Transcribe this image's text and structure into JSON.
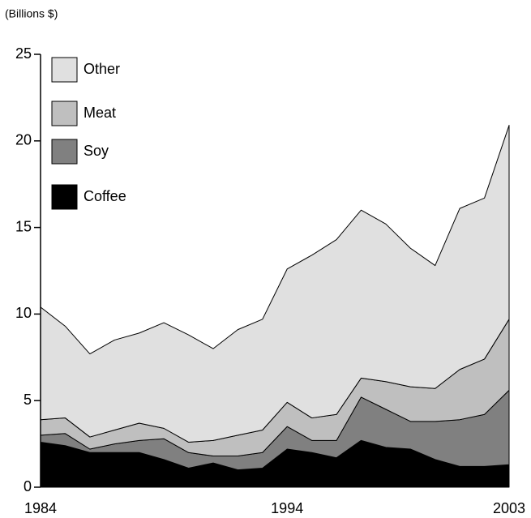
{
  "chart_data": {
    "type": "area",
    "y_label": "(Billions $)",
    "x": [
      1984,
      1985,
      1986,
      1987,
      1988,
      1989,
      1990,
      1991,
      1992,
      1993,
      1994,
      1995,
      1996,
      1997,
      1998,
      1999,
      2000,
      2001,
      2002,
      2003
    ],
    "xlim": [
      1984,
      2003
    ],
    "xticks": [
      1984,
      1994,
      2003
    ],
    "ylim": [
      0,
      25
    ],
    "yticks": [
      0,
      5,
      10,
      15,
      20,
      25
    ],
    "stacked": true,
    "legend": "upper left",
    "series": [
      {
        "name": "Coffee",
        "color": "#000000",
        "values": [
          2.6,
          2.4,
          2.0,
          2.0,
          2.0,
          1.6,
          1.1,
          1.4,
          1.0,
          1.1,
          2.2,
          2.0,
          1.7,
          2.7,
          2.3,
          2.2,
          1.6,
          1.2,
          1.2,
          1.3
        ]
      },
      {
        "name": "Soy",
        "color": "#808080",
        "values": [
          0.4,
          0.7,
          0.2,
          0.5,
          0.7,
          1.2,
          0.9,
          0.4,
          0.8,
          0.9,
          1.3,
          0.7,
          1.0,
          2.5,
          2.2,
          1.6,
          2.2,
          2.7,
          3.0,
          4.3
        ]
      },
      {
        "name": "Meat",
        "color": "#bfbfbf",
        "values": [
          0.9,
          0.9,
          0.7,
          0.8,
          1.0,
          0.6,
          0.6,
          0.9,
          1.2,
          1.3,
          1.4,
          1.3,
          1.5,
          1.1,
          1.6,
          2.0,
          1.9,
          2.9,
          3.2,
          4.1
        ]
      },
      {
        "name": "Other",
        "color": "#e0e0e0",
        "values": [
          6.5,
          5.3,
          4.8,
          5.2,
          5.2,
          6.1,
          6.2,
          5.3,
          6.1,
          6.4,
          7.7,
          9.4,
          10.1,
          9.7,
          9.1,
          8.0,
          7.1,
          9.3,
          9.3,
          11.2
        ]
      }
    ]
  }
}
